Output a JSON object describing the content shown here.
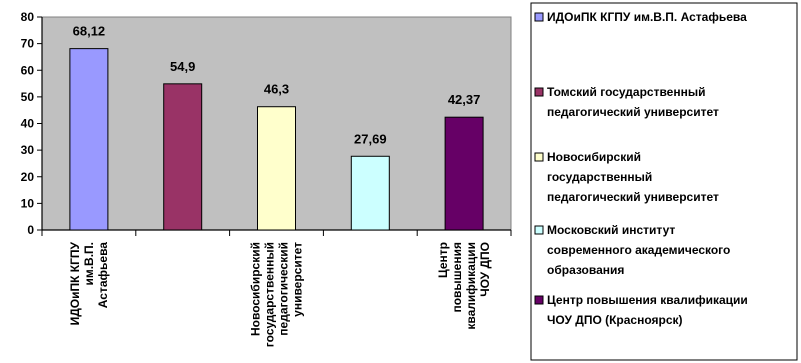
{
  "chart_data": {
    "type": "bar",
    "categories": [
      [
        "ИДОиПК КГПУ",
        "им.В.П.",
        "Астафьева"
      ],
      [],
      [
        "Новосибирский",
        "государственный",
        "педагогический",
        "университет"
      ],
      [],
      [
        "Центр",
        "повышения",
        "квалификации",
        "ЧОУ ДПО"
      ]
    ],
    "values": [
      68.12,
      54.9,
      46.3,
      27.69,
      42.37
    ],
    "value_labels": [
      "68,12",
      "54,9",
      "46,3",
      "27,69",
      "42,37"
    ],
    "colors": [
      "#9999ff",
      "#993366",
      "#ffffcc",
      "#ccffff",
      "#660066"
    ],
    "ylim": [
      0,
      80
    ],
    "yticks": [
      0,
      10,
      20,
      30,
      40,
      50,
      60,
      70,
      80
    ],
    "plot_background": "#c0c0c0",
    "legend_position": "right",
    "legend": [
      [
        "ИДОиПК КГПУ им.В.П. Астафьева"
      ],
      [
        "Томский государственный",
        "педагогический университет"
      ],
      [
        "Новосибирский",
        "государственный",
        "педагогический университет"
      ],
      [
        "Московский институт",
        "современного академического",
        "образования"
      ],
      [
        "Центр повышения квалификации",
        "ЧОУ ДПО (Красноярск)"
      ]
    ]
  }
}
